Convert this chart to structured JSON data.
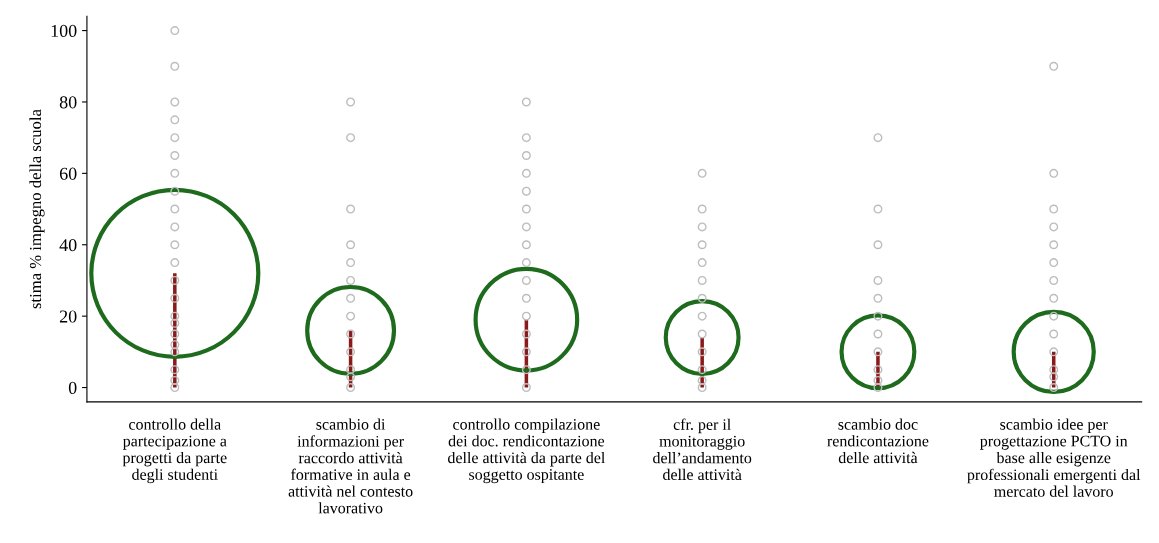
{
  "chart_data": {
    "type": "scatter",
    "ylabel": "stima % impegno della scuola",
    "categories": [
      "controllo della\npartecipazione a\nprogetti da parte\ndegli studenti",
      "scambio di\ninformazioni per\nraccordo attività\nformative in aula e\nattività nel contesto\nlavorativo",
      "controllo compilazione\ndei doc. rendicontazione\ndelle attività da parte del\nsoggetto ospitante",
      "cfr. per il\nmonitoraggio\ndell’andamento\ndelle attività",
      "scambio doc\nrendicontazione\ndelle attività",
      "scambio idee per\nprogettazione PCTO in\nbase alle esigenze\nprofessionali emergenti dal\nmercato del lavoro"
    ],
    "ylim": [
      -4,
      104
    ],
    "yticks": [
      0,
      20,
      40,
      60,
      80,
      100
    ],
    "grid": false,
    "legend": false,
    "series": [
      {
        "type": "bar",
        "color": "#8b1a1a",
        "values": [
          32,
          16,
          19,
          14,
          10,
          10
        ]
      },
      {
        "color": "#bdbdbd",
        "marker": "circle",
        "x": [
          "controllo della\npartecipazione a\nprogetti da parte\ndegli studenti",
          "controllo della\npartecipazione a\nprogetti da parte\ndegli studenti",
          "controllo della\npartecipazione a\nprogetti da parte\ndegli studenti",
          "controllo della\npartecipazione a\nprogetti da parte\ndegli studenti",
          "controllo della\npartecipazione a\nprogetti da parte\ndegli studenti",
          "controllo della\npartecipazione a\nprogetti da parte\ndegli studenti",
          "controllo della\npartecipazione a\nprogetti da parte\ndegli studenti",
          "controllo della\npartecipazione a\nprogetti da parte\ndegli studenti",
          "controllo della\npartecipazione a\nprogetti da parte\ndegli studenti",
          "controllo della\npartecipazione a\nprogetti da parte\ndegli studenti",
          "controllo della\npartecipazione a\nprogetti da parte\ndegli studenti",
          "controllo della\npartecipazione a\nprogetti da parte\ndegli studenti",
          "controllo della\npartecipazione a\nprogetti da parte\ndegli studenti",
          "controllo della\npartecipazione a\nprogetti da parte\ndegli studenti",
          "controllo della\npartecipazione a\nprogetti da parte\ndegli studenti",
          "controllo della\npartecipazione a\nprogetti da parte\ndegli studenti",
          "controllo della\npartecipazione a\nprogetti da parte\ndegli studenti",
          "controllo della\npartecipazione a\nprogetti da parte\ndegli studenti",
          "controllo della\npartecipazione a\nprogetti da parte\ndegli studenti",
          "controllo della\npartecipazione a\nprogetti da parte\ndegli studenti",
          "controllo della\npartecipazione a\nprogetti da parte\ndegli studenti",
          "controllo della\npartecipazione a\nprogetti da parte\ndegli studenti"
        ],
        "values": [
          0,
          2,
          5,
          10,
          15,
          20,
          25,
          30,
          35,
          40,
          45,
          50,
          55,
          60,
          65,
          70,
          75,
          80,
          90,
          100,
          12,
          18
        ]
      },
      {
        "color": "#bdbdbd",
        "marker": "circle",
        "x": [
          "scambio di\ninformazioni per\nraccordo attività\nformative in aula e\nattività nel contesto\nlavorativo",
          "scambio di\ninformazioni per\nraccordo attività\nformative in aula e\nattività nel contesto\nlavorativo",
          "scambio di\ninformazioni per\nraccordo attività\nformative in aula e\nattività nel contesto\nlavorativo",
          "scambio di\ninformazioni per\nraccordo attività\nformative in aula e\nattività nel contesto\nlavorativo",
          "scambio di\ninformazioni per\nraccordo attività\nformative in aula e\nattività nel contesto\nlavorativo",
          "scambio di\ninformazioni per\nraccordo attività\nformative in aula e\nattività nel contesto\nlavorativo",
          "scambio di\ninformazioni per\nraccordo attività\nformative in aula e\nattività nel contesto\nlavorativo",
          "scambio di\ninformazioni per\nraccordo attività\nformative in aula e\nattività nel contesto\nlavorativo",
          "scambio di\ninformazioni per\nraccordo attività\nformative in aula e\nattività nel contesto\nlavorativo",
          "scambio di\ninformazioni per\nraccordo attività\nformative in aula e\nattività nel contesto\nlavorativo",
          "scambio di\ninformazioni per\nraccordo attività\nformative in aula e\nattività nel contesto\nlavorativo",
          "scambio di\ninformazioni per\nraccordo attività\nformative in aula e\nattività nel contesto\nlavorativo",
          "scambio di\ninformazioni per\nraccordo attività\nformative in aula e\nattività nel contesto\nlavorativo"
        ],
        "values": [
          0,
          3,
          5,
          10,
          15,
          20,
          25,
          30,
          35,
          40,
          50,
          70,
          80
        ]
      },
      {
        "color": "#bdbdbd",
        "marker": "circle",
        "x": [
          "controllo compilazione\ndei doc. rendicontazione\ndelle attività da parte del\nsoggetto ospitante",
          "controllo compilazione\ndei doc. rendicontazione\ndelle attività da parte del\nsoggetto ospitante",
          "controllo compilazione\ndei doc. rendicontazione\ndelle attività da parte del\nsoggetto ospitante",
          "controllo compilazione\ndei doc. rendicontazione\ndelle attività da parte del\nsoggetto ospitante",
          "controllo compilazione\ndei doc. rendicontazione\ndelle attività da parte del\nsoggetto ospitante",
          "controllo compilazione\ndei doc. rendicontazione\ndelle attività da parte del\nsoggetto ospitante",
          "controllo compilazione\ndei doc. rendicontazione\ndelle attività da parte del\nsoggetto ospitante",
          "controllo compilazione\ndei doc. rendicontazione\ndelle attività da parte del\nsoggetto ospitante",
          "controllo compilazione\ndei doc. rendicontazione\ndelle attività da parte del\nsoggetto ospitante",
          "controllo compilazione\ndei doc. rendicontazione\ndelle attività da parte del\nsoggetto ospitante",
          "controllo compilazione\ndei doc. rendicontazione\ndelle attività da parte del\nsoggetto ospitante",
          "controllo compilazione\ndei doc. rendicontazione\ndelle attività da parte del\nsoggetto ospitante",
          "controllo compilazione\ndei doc. rendicontazione\ndelle attività da parte del\nsoggetto ospitante",
          "controllo compilazione\ndei doc. rendicontazione\ndelle attività da parte del\nsoggetto ospitante",
          "controllo compilazione\ndei doc. rendicontazione\ndelle attività da parte del\nsoggetto ospitante",
          "controllo compilazione\ndei doc. rendicontazione\ndelle attività da parte del\nsoggetto ospitante"
        ],
        "values": [
          0,
          5,
          10,
          15,
          20,
          25,
          30,
          35,
          40,
          45,
          50,
          55,
          60,
          65,
          70,
          80
        ]
      },
      {
        "color": "#bdbdbd",
        "marker": "circle",
        "x": [
          "cfr. per il\nmonitoraggio\ndell’andamento\ndelle attività",
          "cfr. per il\nmonitoraggio\ndell’andamento\ndelle attività",
          "cfr. per il\nmonitoraggio\ndell’andamento\ndelle attività",
          "cfr. per il\nmonitoraggio\ndell’andamento\ndelle attività",
          "cfr. per il\nmonitoraggio\ndell’andamento\ndelle attività",
          "cfr. per il\nmonitoraggio\ndell’andamento\ndelle attività",
          "cfr. per il\nmonitoraggio\ndell’andamento\ndelle attività",
          "cfr. per il\nmonitoraggio\ndell’andamento\ndelle attività",
          "cfr. per il\nmonitoraggio\ndell’andamento\ndelle attività",
          "cfr. per il\nmonitoraggio\ndell’andamento\ndelle attività",
          "cfr. per il\nmonitoraggio\ndell’andamento\ndelle attività",
          "cfr. per il\nmonitoraggio\ndell’andamento\ndelle attività",
          "cfr. per il\nmonitoraggio\ndell’andamento\ndelle attività"
        ],
        "values": [
          0,
          2,
          5,
          10,
          15,
          20,
          25,
          30,
          35,
          40,
          45,
          50,
          60
        ]
      },
      {
        "color": "#bdbdbd",
        "marker": "circle",
        "x": [
          "scambio doc\nrendicontazione\ndelle attività",
          "scambio doc\nrendicontazione\ndelle attività",
          "scambio doc\nrendicontazione\ndelle attività",
          "scambio doc\nrendicontazione\ndelle attività",
          "scambio doc\nrendicontazione\ndelle attività",
          "scambio doc\nrendicontazione\ndelle attività",
          "scambio doc\nrendicontazione\ndelle attività",
          "scambio doc\nrendicontazione\ndelle attività",
          "scambio doc\nrendicontazione\ndelle attività",
          "scambio doc\nrendicontazione\ndelle attività",
          "scambio doc\nrendicontazione\ndelle attività"
        ],
        "values": [
          0,
          2,
          5,
          10,
          15,
          20,
          25,
          30,
          40,
          50,
          70
        ]
      },
      {
        "color": "#bdbdbd",
        "marker": "circle",
        "x": [
          "scambio idee per\nprogettazione PCTO in\nbase alle esigenze\nprofessionali emergenti dal\nmercato del lavoro",
          "scambio idee per\nprogettazione PCTO in\nbase alle esigenze\nprofessionali emergenti dal\nmercato del lavoro",
          "scambio idee per\nprogettazione PCTO in\nbase alle esigenze\nprofessionali emergenti dal\nmercato del lavoro",
          "scambio idee per\nprogettazione PCTO in\nbase alle esigenze\nprofessionali emergenti dal\nmercato del lavoro",
          "scambio idee per\nprogettazione PCTO in\nbase alle esigenze\nprofessionali emergenti dal\nmercato del lavoro",
          "scambio idee per\nprogettazione PCTO in\nbase alle esigenze\nprofessionali emergenti dal\nmercato del lavoro",
          "scambio idee per\nprogettazione PCTO in\nbase alle esigenze\nprofessionali emergenti dal\nmercato del lavoro",
          "scambio idee per\nprogettazione PCTO in\nbase alle esigenze\nprofessionali emergenti dal\nmercato del lavoro",
          "scambio idee per\nprogettazione PCTO in\nbase alle esigenze\nprofessionali emergenti dal\nmercato del lavoro",
          "scambio idee per\nprogettazione PCTO in\nbase alle esigenze\nprofessionali emergenti dal\nmercato del lavoro",
          "scambio idee per\nprogettazione PCTO in\nbase alle esigenze\nprofessionali emergenti dal\nmercato del lavoro",
          "scambio idee per\nprogettazione PCTO in\nbase alle esigenze\nprofessionali emergenti dal\nmercato del lavoro",
          "scambio idee per\nprogettazione PCTO in\nbase alle esigenze\nprofessionali emergenti dal\nmercato del lavoro",
          "scambio idee per\nprogettazione PCTO in\nbase alle esigenze\nprofessionali emergenti dal\nmercato del lavoro"
        ],
        "values": [
          0,
          3,
          5,
          10,
          15,
          20,
          25,
          30,
          35,
          40,
          45,
          50,
          60,
          90
        ]
      },
      {
        "type": "bubble",
        "color": "#1e6b1e",
        "values": [
          32,
          16,
          19,
          14,
          10,
          10
        ],
        "sizes": [
          1,
          0.27,
          0.37,
          0.19,
          0.19,
          0.23
        ]
      }
    ]
  }
}
